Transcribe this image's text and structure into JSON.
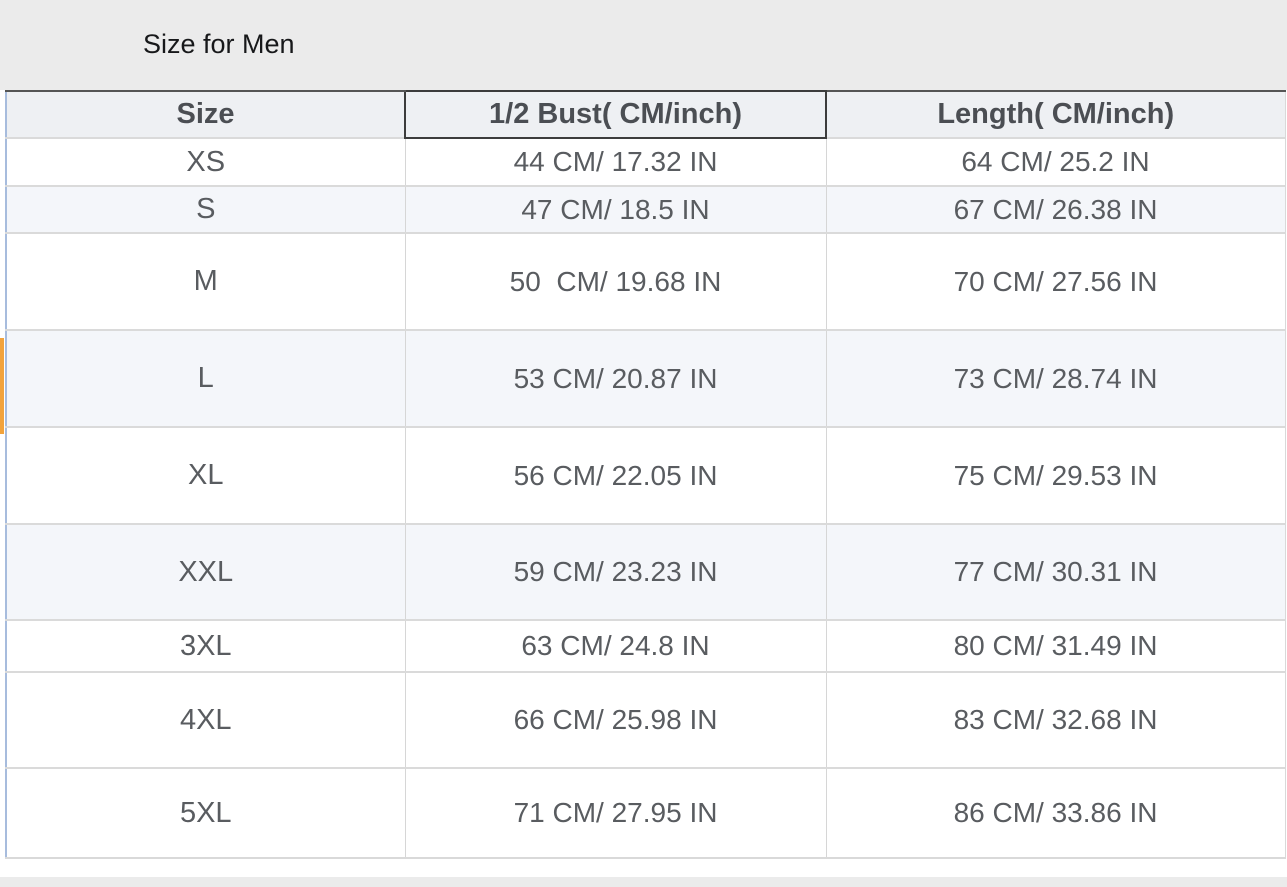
{
  "page": {
    "title": "Size for Men"
  },
  "table": {
    "columns": [
      {
        "id": "size",
        "label": "Size"
      },
      {
        "id": "bust",
        "label": "1/2 Bust( CM/inch)"
      },
      {
        "id": "length",
        "label": "Length( CM/inch)"
      }
    ],
    "rows": [
      {
        "size": "XS",
        "bust": "44 CM/ 17.32 IN",
        "length": "64 CM/ 25.2 IN"
      },
      {
        "size": "S",
        "bust": "47 CM/ 18.5 IN",
        "length": "67 CM/ 26.38 IN"
      },
      {
        "size": "M",
        "bust": "50  CM/ 19.68 IN",
        "length": "70 CM/ 27.56 IN"
      },
      {
        "size": "L",
        "bust": "53 CM/ 20.87 IN",
        "length": "73 CM/ 28.74 IN"
      },
      {
        "size": "XL",
        "bust": "56 CM/ 22.05 IN",
        "length": "75 CM/ 29.53 IN"
      },
      {
        "size": "XXL",
        "bust": "59 CM/ 23.23 IN",
        "length": "77 CM/ 30.31 IN"
      },
      {
        "size": "3XL",
        "bust": "63 CM/ 24.8 IN",
        "length": "80 CM/ 31.49 IN"
      },
      {
        "size": "4XL",
        "bust": "66 CM/ 25.98 IN",
        "length": "83 CM/ 32.68 IN"
      },
      {
        "size": "5XL",
        "bust": "71 CM/ 27.95 IN",
        "length": "86 CM/ 33.86 IN"
      }
    ]
  },
  "colors": {
    "page_background": "#ebebeb",
    "header_background": "#eef0f3",
    "striped_row_background": "#f4f6fa",
    "grid_border": "#d9d9d9",
    "selected_cell_border": "#3c3c3c",
    "table_left_border": "#a7bcdd",
    "row_highlight_marker": "#f2a33c",
    "header_text": "#4b4e53",
    "cell_text": "#595c60",
    "title_text": "#17181a"
  },
  "chart_data": {
    "type": "table",
    "title": "Size for Men",
    "columns": [
      "Size",
      "1/2 Bust( CM/inch)",
      "Length( CM/inch)"
    ],
    "rows": [
      [
        "XS",
        "44 CM/ 17.32 IN",
        "64 CM/ 25.2 IN"
      ],
      [
        "S",
        "47 CM/ 18.5 IN",
        "67 CM/ 26.38 IN"
      ],
      [
        "M",
        "50  CM/ 19.68 IN",
        "70 CM/ 27.56 IN"
      ],
      [
        "L",
        "53 CM/ 20.87 IN",
        "73 CM/ 28.74 IN"
      ],
      [
        "XL",
        "56 CM/ 22.05 IN",
        "75 CM/ 29.53 IN"
      ],
      [
        "XXL",
        "59 CM/ 23.23 IN",
        "77 CM/ 30.31 IN"
      ],
      [
        "3XL",
        "63 CM/ 24.8 IN",
        "80 CM/ 31.49 IN"
      ],
      [
        "4XL",
        "66 CM/ 25.98 IN",
        "83 CM/ 32.68 IN"
      ],
      [
        "5XL",
        "71 CM/ 27.95 IN",
        "86 CM/ 33.86 IN"
      ]
    ]
  }
}
